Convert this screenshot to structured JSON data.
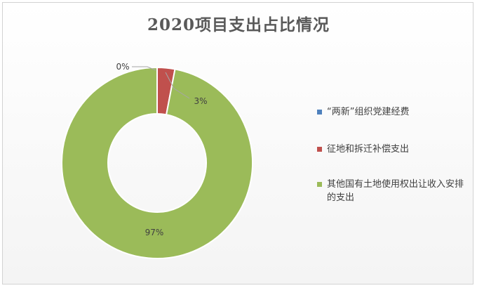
{
  "chart_data": {
    "type": "pie",
    "style": "donut",
    "title": "2020项目支出占比情况",
    "categories": [
      "“两新”组织党建经费",
      "征地和拆迁补偿支出",
      "其他国有土地使用权出让收入安排的支出"
    ],
    "values": [
      0,
      3,
      97
    ],
    "unit": "%",
    "data_labels": [
      "0%",
      "3%",
      "97%"
    ],
    "colors": [
      "#4f81bd",
      "#c0504d",
      "#9bbb59"
    ],
    "legend_position": "right"
  }
}
